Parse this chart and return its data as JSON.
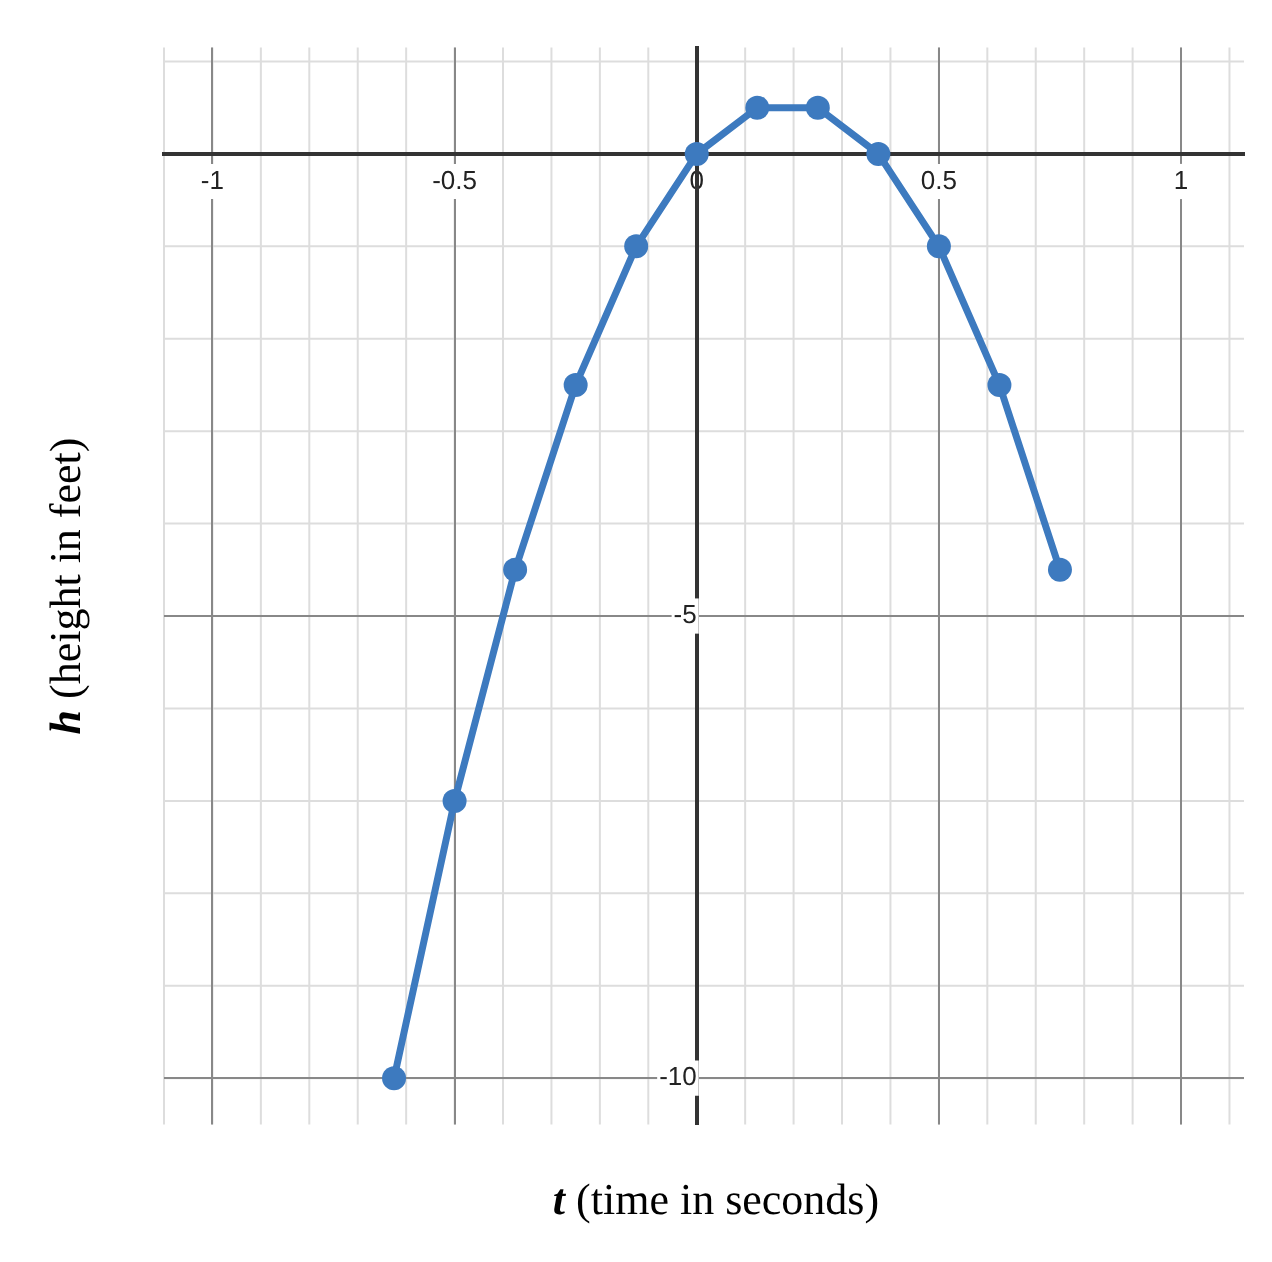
{
  "chart_data": {
    "type": "line",
    "xlabel": "t (time in seconds)",
    "ylabel": "h (height in feet)",
    "x": [
      -0.625,
      -0.5,
      -0.375,
      -0.25,
      -0.125,
      0,
      0.125,
      0.25,
      0.375,
      0.5,
      0.625,
      0.75
    ],
    "series": [
      {
        "color": "#3d7abf",
        "values": [
          -10,
          -7,
          -4.5,
          -2.5,
          -1,
          0,
          0.5,
          0.5,
          0,
          -1,
          -2.5,
          -4.5
        ]
      }
    ],
    "xlim": [
      -1.1,
      1.13
    ],
    "ylim": [
      -10.5,
      1.15
    ],
    "xticks": [
      -1,
      -0.5,
      0,
      0.5,
      1
    ],
    "yticks": [
      -10,
      -5,
      {
        "value": 0,
        "label": null
      }
    ],
    "grid": true,
    "marker": "circle",
    "line_style": "solid",
    "legend": false
  }
}
